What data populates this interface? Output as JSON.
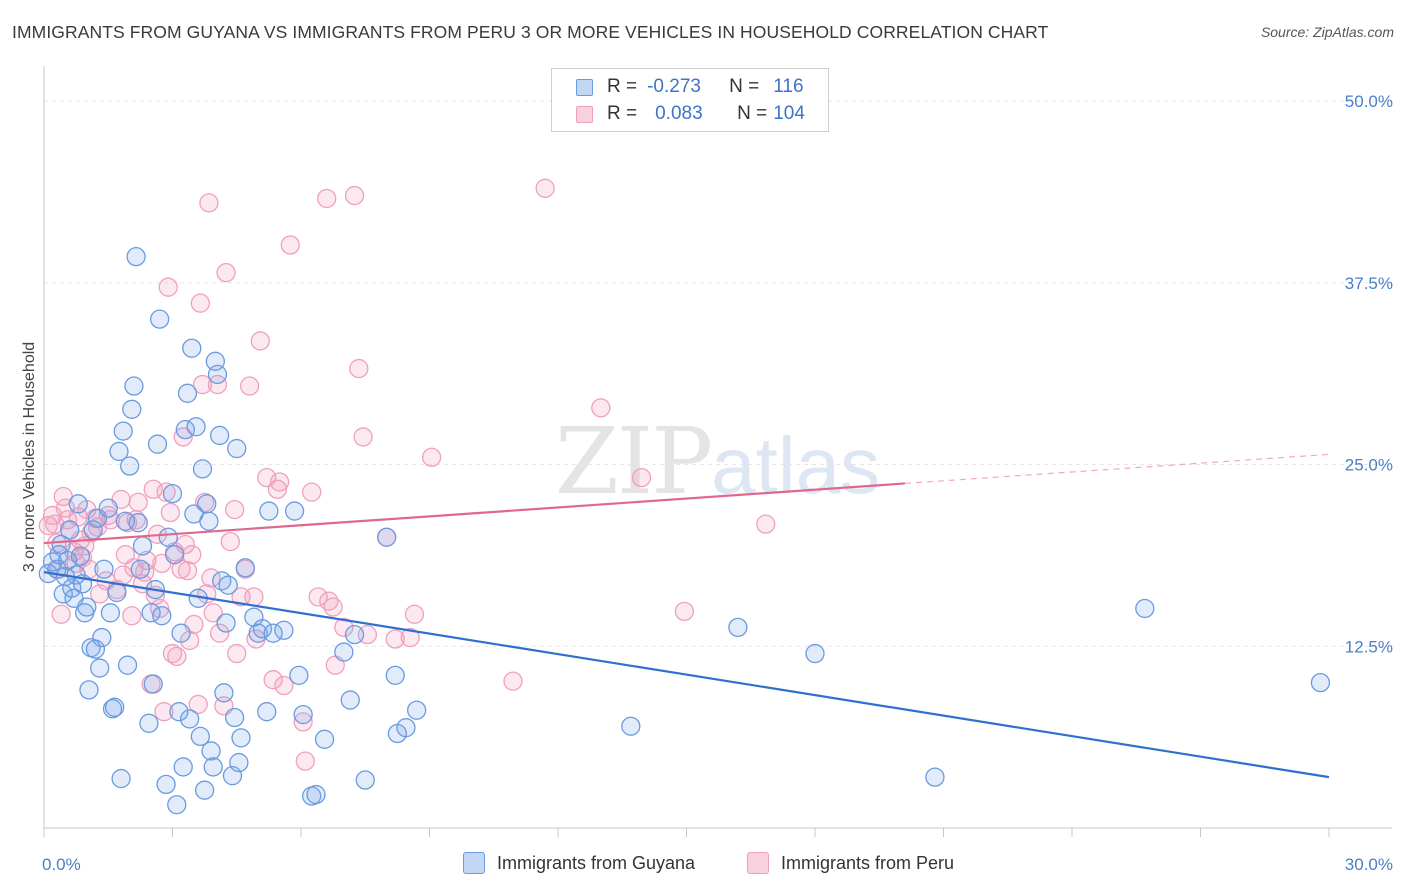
{
  "title": "IMMIGRANTS FROM GUYANA VS IMMIGRANTS FROM PERU 3 OR MORE VEHICLES IN HOUSEHOLD CORRELATION CHART",
  "source": "Source: ZipAtlas.com",
  "watermark": {
    "bold": "ZIP",
    "light": "atlas"
  },
  "colors": {
    "guyana": "#6a9be0",
    "peru": "#f0a0bc",
    "guyana_line": "#2f6fd0",
    "peru_line": "#e06890",
    "tick": "#4a7fc8"
  },
  "legend": {
    "rows": [
      {
        "r_label": "R =",
        "r_value": "-0.273",
        "n_label": "N =",
        "n_value": "116"
      },
      {
        "r_label": "R =",
        "r_value": "0.083",
        "n_label": "N =",
        "n_value": "104"
      }
    ]
  },
  "bottom_legend": [
    "Immigrants from Guyana",
    "Immigrants from Peru"
  ],
  "chart_data": {
    "type": "scatter",
    "xlabel": "",
    "ylabel": "3 or more Vehicles in Household",
    "xlim": [
      0,
      30
    ],
    "ylim": [
      0,
      52
    ],
    "x_tick_labels": [
      "0.0%",
      "30.0%"
    ],
    "y_ticks": [
      12.5,
      25.0,
      37.5,
      50.0
    ],
    "y_tick_labels": [
      "12.5%",
      "25.0%",
      "37.5%",
      "50.0%"
    ],
    "grid": true,
    "series": [
      {
        "name": "Immigrants from Guyana",
        "r": -0.273,
        "n": 116,
        "trend": {
          "x": [
            0,
            30
          ],
          "y": [
            17.6,
            3.5
          ]
        },
        "points": [
          [
            0.1,
            17.5
          ],
          [
            0.2,
            18.3
          ],
          [
            0.3,
            17.8
          ],
          [
            0.35,
            18.8
          ],
          [
            0.4,
            19.5
          ],
          [
            0.45,
            16.1
          ],
          [
            0.5,
            17.3
          ],
          [
            0.55,
            18.4
          ],
          [
            0.6,
            20.5
          ],
          [
            0.65,
            16.5
          ],
          [
            0.7,
            15.8
          ],
          [
            0.75,
            17.4
          ],
          [
            0.8,
            22.3
          ],
          [
            0.85,
            18.7
          ],
          [
            0.9,
            16.8
          ],
          [
            0.95,
            14.8
          ],
          [
            1.0,
            15.2
          ],
          [
            1.05,
            9.5
          ],
          [
            1.1,
            12.4
          ],
          [
            1.15,
            20.5
          ],
          [
            1.2,
            12.3
          ],
          [
            1.25,
            21.3
          ],
          [
            1.3,
            11.0
          ],
          [
            1.35,
            13.1
          ],
          [
            1.4,
            17.8
          ],
          [
            1.5,
            22.0
          ],
          [
            1.55,
            14.8
          ],
          [
            1.6,
            8.2
          ],
          [
            1.65,
            8.3
          ],
          [
            1.7,
            16.2
          ],
          [
            1.75,
            25.9
          ],
          [
            1.8,
            3.4
          ],
          [
            1.85,
            27.3
          ],
          [
            1.9,
            21.1
          ],
          [
            1.95,
            11.2
          ],
          [
            2.0,
            24.9
          ],
          [
            2.05,
            28.8
          ],
          [
            2.1,
            30.4
          ],
          [
            2.15,
            39.3
          ],
          [
            2.2,
            21.0
          ],
          [
            2.25,
            17.8
          ],
          [
            2.3,
            19.4
          ],
          [
            2.45,
            7.2
          ],
          [
            2.5,
            14.8
          ],
          [
            2.55,
            9.9
          ],
          [
            2.6,
            16.4
          ],
          [
            2.65,
            26.4
          ],
          [
            2.7,
            35.0
          ],
          [
            2.75,
            14.6
          ],
          [
            2.85,
            3.0
          ],
          [
            2.9,
            20.0
          ],
          [
            3.0,
            23.0
          ],
          [
            3.05,
            18.8
          ],
          [
            3.1,
            1.6
          ],
          [
            3.15,
            8.0
          ],
          [
            3.2,
            13.4
          ],
          [
            3.25,
            4.2
          ],
          [
            3.3,
            27.4
          ],
          [
            3.35,
            29.9
          ],
          [
            3.4,
            7.5
          ],
          [
            3.45,
            33.0
          ],
          [
            3.5,
            21.6
          ],
          [
            3.55,
            27.6
          ],
          [
            3.6,
            15.8
          ],
          [
            3.65,
            6.3
          ],
          [
            3.7,
            24.7
          ],
          [
            3.75,
            2.6
          ],
          [
            3.8,
            22.3
          ],
          [
            3.85,
            21.1
          ],
          [
            3.9,
            5.3
          ],
          [
            3.95,
            4.2
          ],
          [
            4.0,
            32.1
          ],
          [
            4.05,
            31.2
          ],
          [
            4.1,
            27.0
          ],
          [
            4.15,
            17.0
          ],
          [
            4.2,
            9.3
          ],
          [
            4.25,
            14.1
          ],
          [
            4.3,
            16.7
          ],
          [
            4.4,
            3.6
          ],
          [
            4.45,
            7.6
          ],
          [
            4.5,
            26.1
          ],
          [
            4.55,
            4.5
          ],
          [
            4.6,
            6.2
          ],
          [
            4.7,
            17.9
          ],
          [
            4.9,
            14.5
          ],
          [
            5.0,
            13.4
          ],
          [
            5.1,
            13.7
          ],
          [
            5.2,
            8.0
          ],
          [
            5.25,
            21.8
          ],
          [
            5.35,
            13.4
          ],
          [
            5.6,
            13.6
          ],
          [
            5.85,
            21.8
          ],
          [
            5.95,
            10.5
          ],
          [
            6.05,
            7.8
          ],
          [
            6.25,
            2.2
          ],
          [
            6.35,
            2.3
          ],
          [
            6.55,
            6.1
          ],
          [
            7.0,
            12.1
          ],
          [
            7.15,
            8.8
          ],
          [
            7.25,
            13.3
          ],
          [
            7.5,
            3.3
          ],
          [
            8.0,
            20.0
          ],
          [
            8.2,
            10.5
          ],
          [
            8.25,
            6.5
          ],
          [
            8.45,
            6.9
          ],
          [
            8.7,
            8.1
          ],
          [
            13.7,
            7.0
          ],
          [
            16.2,
            13.8
          ],
          [
            18.0,
            12.0
          ],
          [
            20.8,
            3.5
          ],
          [
            25.7,
            15.1
          ],
          [
            29.8,
            10.0
          ]
        ]
      },
      {
        "name": "Immigrants from Peru",
        "r": 0.083,
        "n": 104,
        "trend": {
          "x": [
            0,
            20.1
          ],
          "y": [
            19.6,
            23.7
          ]
        },
        "trend_dashed": {
          "x": [
            20.1,
            30
          ],
          "y": [
            23.7,
            25.7
          ]
        },
        "points": [
          [
            0.1,
            20.8
          ],
          [
            0.2,
            21.5
          ],
          [
            0.25,
            20.9
          ],
          [
            0.3,
            19.6
          ],
          [
            0.35,
            17.8
          ],
          [
            0.4,
            14.7
          ],
          [
            0.45,
            22.8
          ],
          [
            0.5,
            22.0
          ],
          [
            0.55,
            21.2
          ],
          [
            0.6,
            20.5
          ],
          [
            0.7,
            19.0
          ],
          [
            0.75,
            18.2
          ],
          [
            0.8,
            21.4
          ],
          [
            0.85,
            19.8
          ],
          [
            0.9,
            18.6
          ],
          [
            0.95,
            19.4
          ],
          [
            1.0,
            21.9
          ],
          [
            1.05,
            17.8
          ],
          [
            1.1,
            20.3
          ],
          [
            1.2,
            21.3
          ],
          [
            1.25,
            20.7
          ],
          [
            1.3,
            16.1
          ],
          [
            1.45,
            17.0
          ],
          [
            1.5,
            21.5
          ],
          [
            1.55,
            21.2
          ],
          [
            1.7,
            16.4
          ],
          [
            1.8,
            22.6
          ],
          [
            1.85,
            17.4
          ],
          [
            1.9,
            18.8
          ],
          [
            1.95,
            21.0
          ],
          [
            2.05,
            14.6
          ],
          [
            2.1,
            17.9
          ],
          [
            2.15,
            21.2
          ],
          [
            2.2,
            22.4
          ],
          [
            2.3,
            16.8
          ],
          [
            2.35,
            17.6
          ],
          [
            2.4,
            18.4
          ],
          [
            2.5,
            9.9
          ],
          [
            2.55,
            23.3
          ],
          [
            2.6,
            16.0
          ],
          [
            2.65,
            20.2
          ],
          [
            2.7,
            15.1
          ],
          [
            2.75,
            18.2
          ],
          [
            2.8,
            8.0
          ],
          [
            2.85,
            23.1
          ],
          [
            2.9,
            37.2
          ],
          [
            2.95,
            21.7
          ],
          [
            3.0,
            12.0
          ],
          [
            3.05,
            19.0
          ],
          [
            3.1,
            11.8
          ],
          [
            3.2,
            17.8
          ],
          [
            3.25,
            26.9
          ],
          [
            3.3,
            19.5
          ],
          [
            3.35,
            17.7
          ],
          [
            3.4,
            12.9
          ],
          [
            3.45,
            18.8
          ],
          [
            3.5,
            14.0
          ],
          [
            3.6,
            8.5
          ],
          [
            3.65,
            36.1
          ],
          [
            3.7,
            30.5
          ],
          [
            3.75,
            22.4
          ],
          [
            3.8,
            16.1
          ],
          [
            3.85,
            43.0
          ],
          [
            3.9,
            17.2
          ],
          [
            3.95,
            14.8
          ],
          [
            4.05,
            30.5
          ],
          [
            4.1,
            13.4
          ],
          [
            4.2,
            8.4
          ],
          [
            4.25,
            38.2
          ],
          [
            4.35,
            19.7
          ],
          [
            4.45,
            21.9
          ],
          [
            4.5,
            12.0
          ],
          [
            4.6,
            15.9
          ],
          [
            4.7,
            17.8
          ],
          [
            4.8,
            30.4
          ],
          [
            4.9,
            15.9
          ],
          [
            4.95,
            13.0
          ],
          [
            5.05,
            33.5
          ],
          [
            5.2,
            24.1
          ],
          [
            5.35,
            10.2
          ],
          [
            5.45,
            23.3
          ],
          [
            5.5,
            23.8
          ],
          [
            5.6,
            9.8
          ],
          [
            5.75,
            40.1
          ],
          [
            6.05,
            7.3
          ],
          [
            6.1,
            4.6
          ],
          [
            6.25,
            23.1
          ],
          [
            6.4,
            15.9
          ],
          [
            6.6,
            43.3
          ],
          [
            6.65,
            15.6
          ],
          [
            6.75,
            15.2
          ],
          [
            6.8,
            11.2
          ],
          [
            7.0,
            13.8
          ],
          [
            7.25,
            43.5
          ],
          [
            7.35,
            31.6
          ],
          [
            7.45,
            26.9
          ],
          [
            7.55,
            13.3
          ],
          [
            8.0,
            20.0
          ],
          [
            8.2,
            13.0
          ],
          [
            8.55,
            13.1
          ],
          [
            8.65,
            14.7
          ],
          [
            9.05,
            25.5
          ],
          [
            10.95,
            10.1
          ],
          [
            11.7,
            44.0
          ],
          [
            13.0,
            28.9
          ],
          [
            13.95,
            24.1
          ],
          [
            14.95,
            14.9
          ],
          [
            16.85,
            20.9
          ]
        ]
      }
    ]
  }
}
